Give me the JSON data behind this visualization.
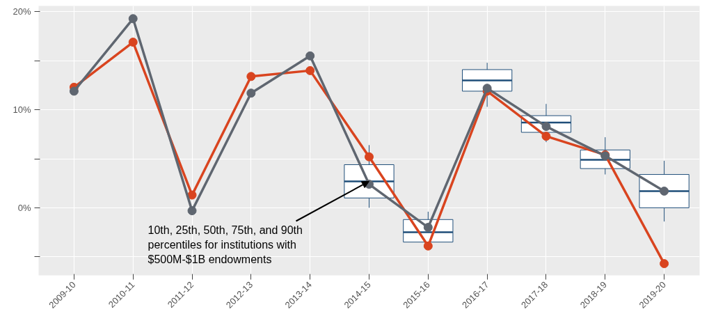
{
  "chart_data": {
    "type": "line",
    "categories": [
      "2009-10",
      "2010-11",
      "2011-12",
      "2012-13",
      "2013-14",
      "2014-15",
      "2015-16",
      "2016-17",
      "2017-18",
      "2018-19",
      "2019-20"
    ],
    "series": [
      {
        "type": "box",
        "color": "#1f4e79",
        "boxes": [
          null,
          null,
          null,
          null,
          null,
          {
            "low": 0.0,
            "q1": 1.0,
            "median": 2.7,
            "q3": 4.4,
            "high": 6.4
          },
          {
            "low": -4.3,
            "q1": -3.5,
            "median": -2.5,
            "q3": -1.2,
            "high": -0.4
          },
          {
            "low": 10.3,
            "q1": 11.9,
            "median": 13.0,
            "q3": 14.1,
            "high": 14.8
          },
          {
            "low": 6.7,
            "q1": 7.7,
            "median": 8.7,
            "q3": 9.4,
            "high": 10.6
          },
          {
            "low": 3.4,
            "q1": 4.0,
            "median": 4.9,
            "q3": 5.9,
            "high": 7.2
          },
          {
            "low": -1.4,
            "q1": 0.0,
            "median": 1.7,
            "q3": 3.4,
            "high": 4.8
          }
        ]
      },
      {
        "color": "#d9441f",
        "values": [
          12.3,
          16.9,
          1.3,
          13.4,
          14.0,
          5.2,
          -3.9,
          11.9,
          7.3,
          5.4,
          -5.7
        ]
      },
      {
        "color": "#5f6670",
        "values": [
          11.9,
          19.3,
          -0.3,
          11.7,
          15.5,
          2.4,
          -2.0,
          12.2,
          8.3,
          5.3,
          1.7
        ]
      }
    ],
    "ylim": [
      -6.9,
      20.6
    ],
    "yticks": [
      {
        "value": -5,
        "label": null
      },
      {
        "value": 0,
        "label": "0%"
      },
      {
        "value": 5,
        "label": null
      },
      {
        "value": 10,
        "label": "10%"
      },
      {
        "value": 15,
        "label": null
      },
      {
        "value": 20,
        "label": "20%"
      }
    ],
    "grid": true,
    "marker": "circle",
    "line_style": "solid",
    "annotations": [
      {
        "text": "10th, 25th, 50th, 75th, and 90th\npercentiles for institutions with\n$500M-$1B endowments",
        "x": "2014-15",
        "y": 2.7
      }
    ]
  }
}
